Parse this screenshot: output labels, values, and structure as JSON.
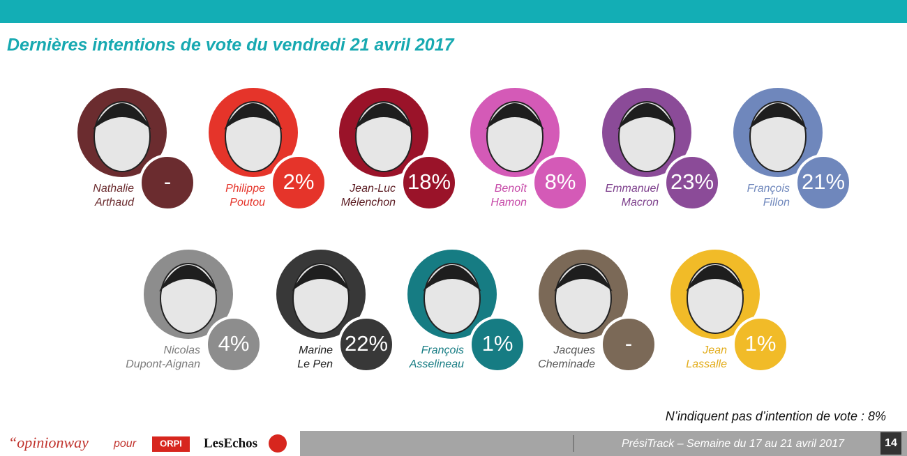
{
  "header": {
    "title": "Dernières intentions de vote du vendredi 21 avril 2017"
  },
  "candidates": [
    {
      "first_name": "Nathalie",
      "last_name": "Arthaud",
      "result": "-",
      "color": "#6b2c2f",
      "text_color": "#6b2c2f"
    },
    {
      "first_name": "Philippe",
      "last_name": "Poutou",
      "result": "2%",
      "color": "#e5342a",
      "text_color": "#e5342a"
    },
    {
      "first_name": "Jean-Luc",
      "last_name": "Mélenchon",
      "result": "18%",
      "color": "#9a1329",
      "text_color": "#5a1a20"
    },
    {
      "first_name": "Benoît",
      "last_name": "Hamon",
      "result": "8%",
      "color": "#d45ab7",
      "text_color": "#c64aa8"
    },
    {
      "first_name": "Emmanuel",
      "last_name": "Macron",
      "result": "23%",
      "color": "#8b4b98",
      "text_color": "#7d3f8c"
    },
    {
      "first_name": "François",
      "last_name": "Fillon",
      "result": "21%",
      "color": "#6f87bc",
      "text_color": "#6f87bc"
    },
    {
      "first_name": "Nicolas",
      "last_name": "Dupont-Aignan",
      "result": "4%",
      "color": "#8d8d8d",
      "text_color": "#7a7a7a"
    },
    {
      "first_name": "Marine",
      "last_name": "Le Pen",
      "result": "22%",
      "color": "#383838",
      "text_color": "#222222"
    },
    {
      "first_name": "François",
      "last_name": "Asselineau",
      "result": "1%",
      "color": "#167c83",
      "text_color": "#167c83"
    },
    {
      "first_name": "Jacques",
      "last_name": "Cheminade",
      "result": "-",
      "color": "#7b6957",
      "text_color": "#555555"
    },
    {
      "first_name": "Jean",
      "last_name": "Lassalle",
      "result": "1%",
      "color": "#f1bb28",
      "text_color": "#e2ab18"
    }
  ],
  "note": "N’indiquent pas d’intention de vote : 8%",
  "footer": {
    "brand": "“opinionway",
    "pour": "pour",
    "partner1": "ORPI",
    "partner2": "LesEchos",
    "caption": "PrésiTrack – Semaine du 17 au 21 avril 2017",
    "page": "14"
  }
}
